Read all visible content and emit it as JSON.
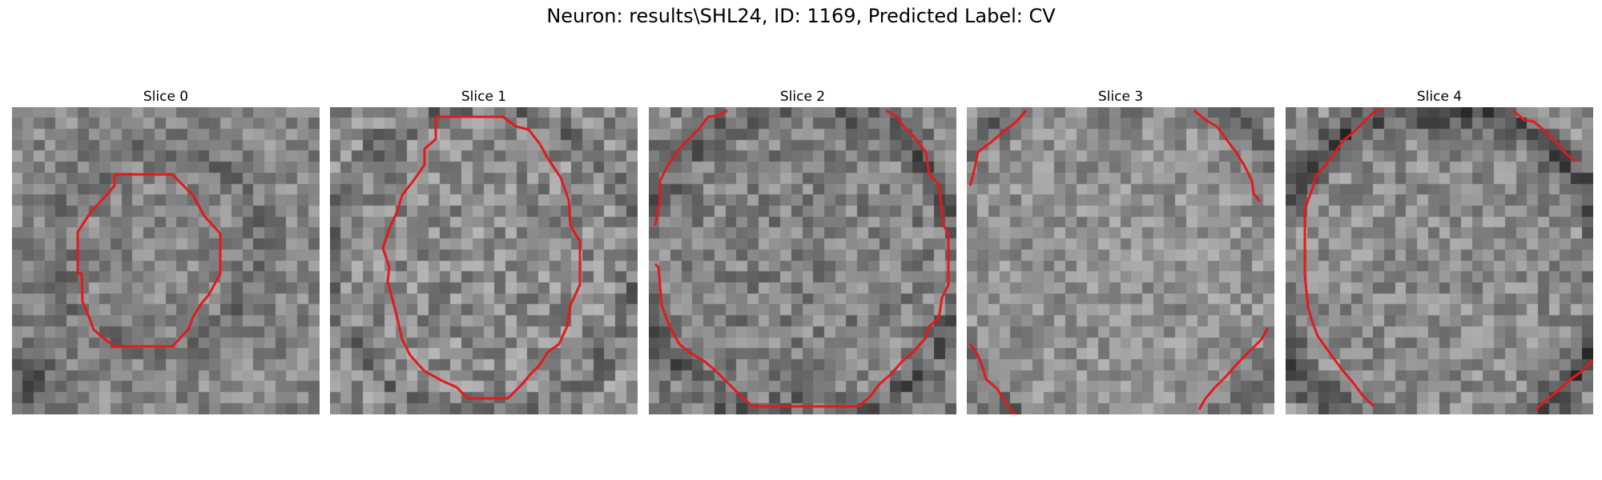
{
  "figure": {
    "title": "Neuron: results\\SHL24, ID: 1169, Predicted Label: CV",
    "contour_color": "#e31a1c"
  },
  "panels": [
    {
      "title": "Slice 0"
    },
    {
      "title": "Slice 1"
    },
    {
      "title": "Slice 2"
    },
    {
      "title": "Slice 3"
    },
    {
      "title": "Slice 4"
    }
  ]
}
